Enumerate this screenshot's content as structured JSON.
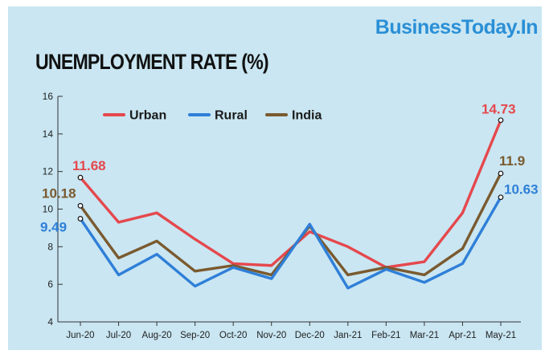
{
  "brand": "BusinessToday.In",
  "chart_data": {
    "type": "line",
    "title": "UNEMPLOYMENT RATE (%)",
    "xlabel": "",
    "ylabel": "",
    "categories": [
      "Jun-20",
      "Jul-20",
      "Aug-20",
      "Sep-20",
      "Oct-20",
      "Nov-20",
      "Dec-20",
      "Jan-21",
      "Feb-21",
      "Mar-21",
      "Apr-21",
      "May-21"
    ],
    "ylim": [
      4,
      16
    ],
    "yticks": [
      4,
      6,
      8,
      10,
      12,
      14,
      16
    ],
    "grid": false,
    "legend_position": "top-left",
    "series": [
      {
        "name": "Urban",
        "color": "#e5484d",
        "values": [
          11.68,
          9.3,
          9.8,
          8.4,
          7.1,
          7.0,
          8.8,
          8.0,
          6.9,
          7.2,
          9.8,
          14.73
        ],
        "labels": [
          {
            "index": 0,
            "text": "11.68"
          },
          {
            "index": 11,
            "text": "14.73"
          }
        ]
      },
      {
        "name": "Rural",
        "color": "#2f7fd8",
        "values": [
          9.49,
          6.5,
          7.6,
          5.9,
          6.9,
          6.3,
          9.2,
          5.8,
          6.8,
          6.1,
          7.1,
          10.63
        ],
        "labels": [
          {
            "index": 0,
            "text": "9.49"
          },
          {
            "index": 11,
            "text": "10.63"
          }
        ]
      },
      {
        "name": "India",
        "color": "#7a5a2f",
        "values": [
          10.18,
          7.4,
          8.3,
          6.7,
          7.0,
          6.5,
          9.1,
          6.5,
          6.9,
          6.5,
          7.9,
          11.9
        ],
        "labels": [
          {
            "index": 0,
            "text": "10.18"
          },
          {
            "index": 11,
            "text": "11.9"
          }
        ]
      }
    ]
  }
}
